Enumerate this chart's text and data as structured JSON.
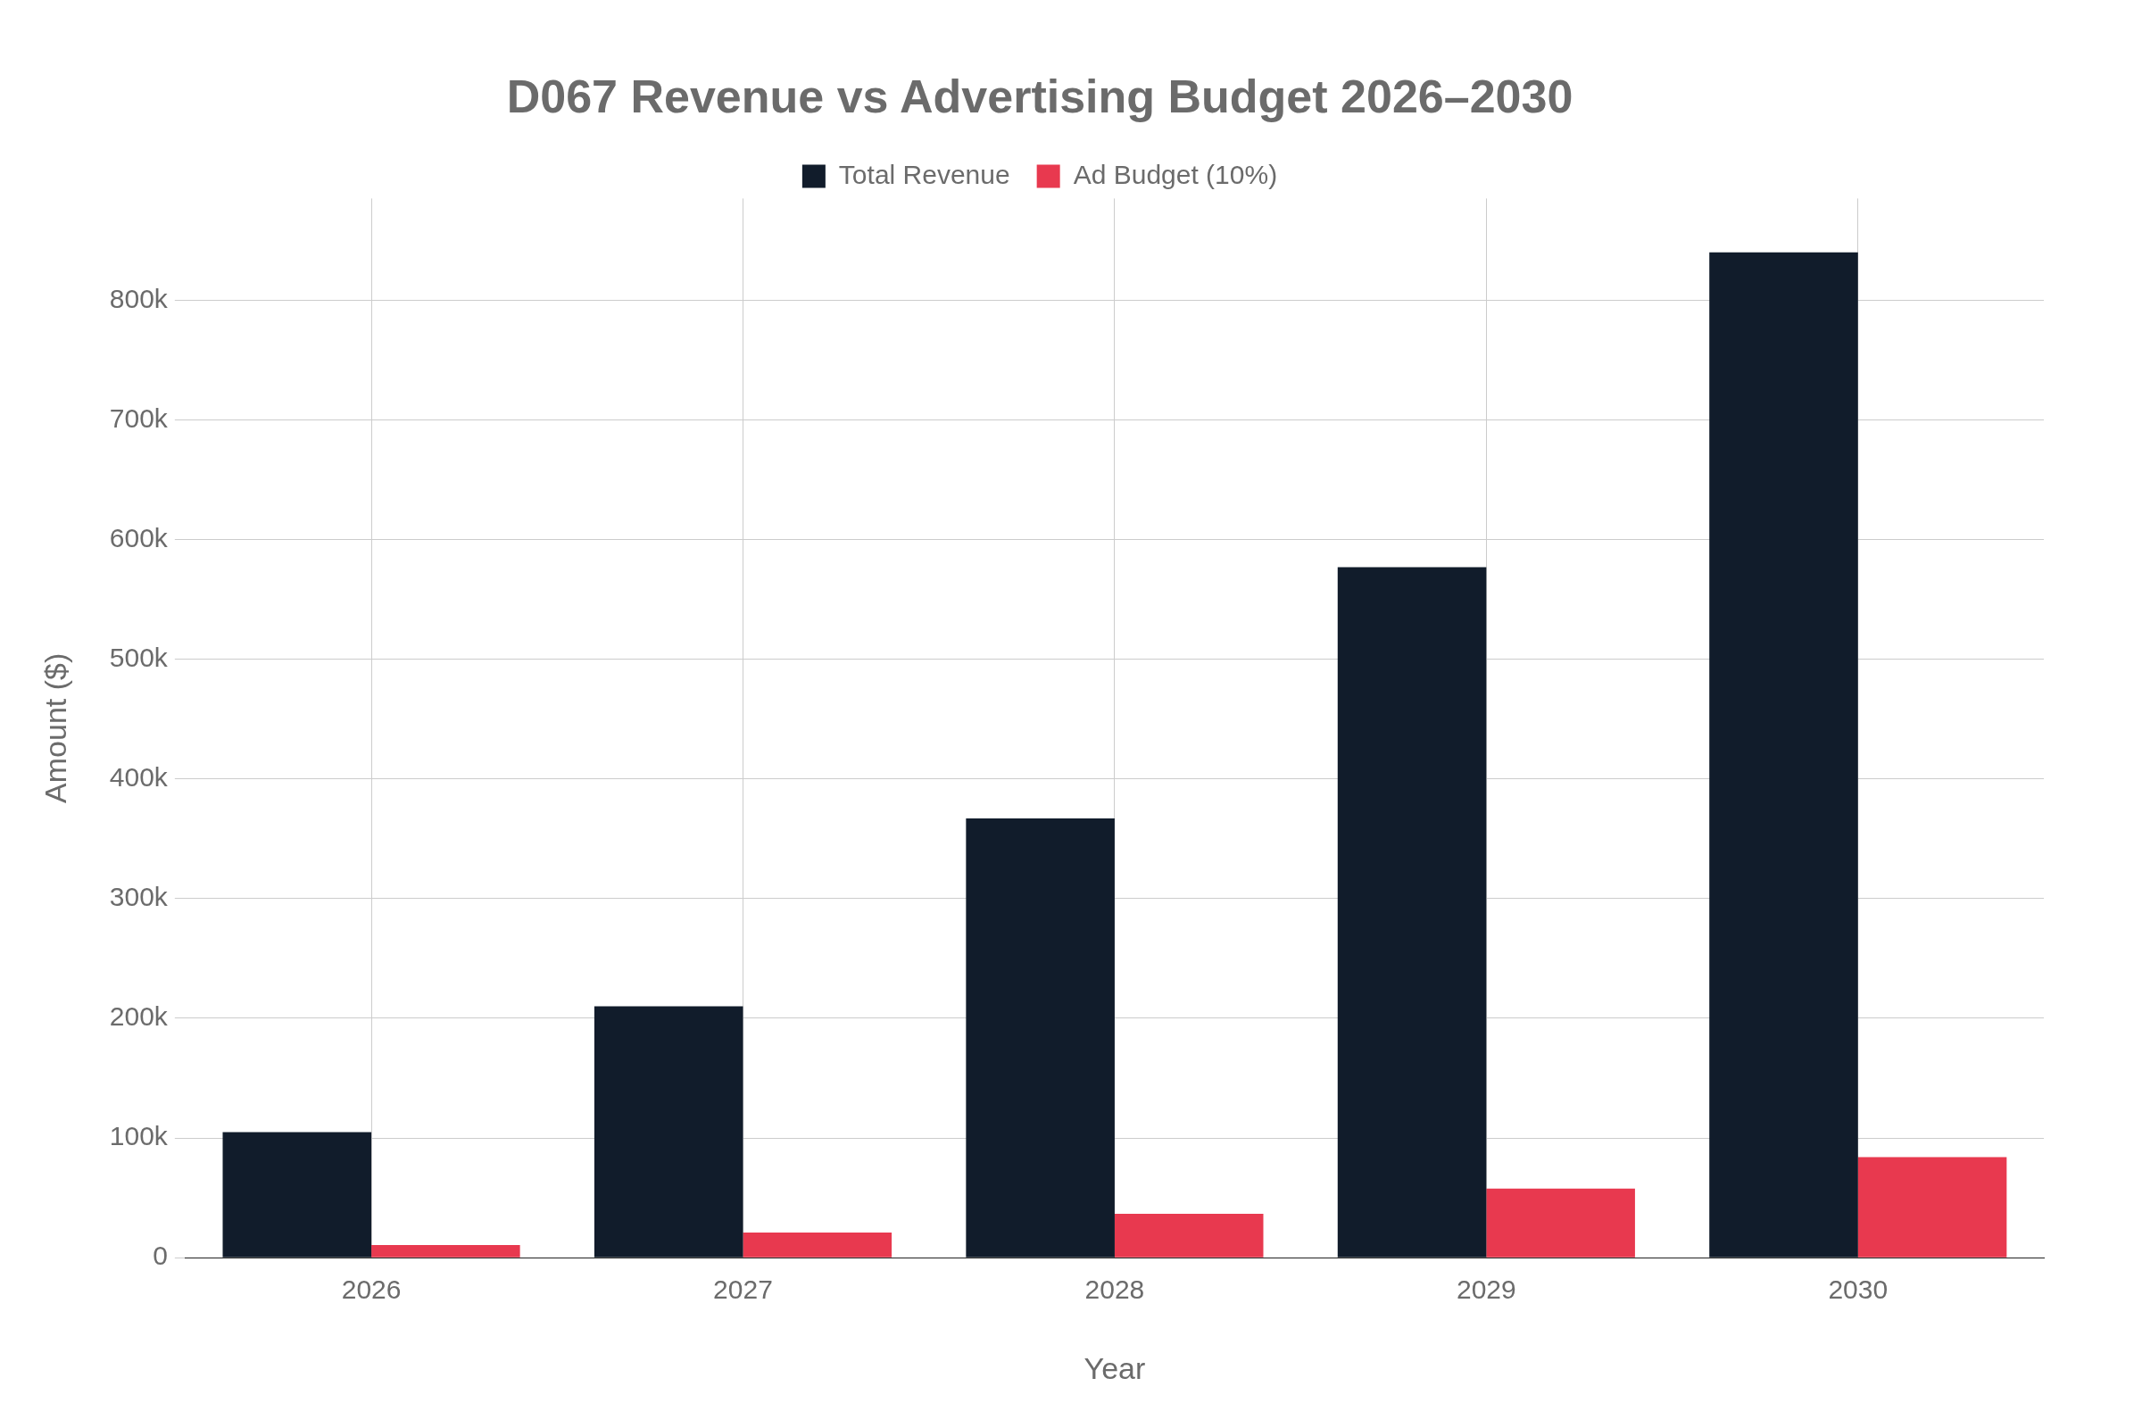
{
  "chart_data": {
    "type": "bar",
    "title": "D067 Revenue vs Advertising Budget 2026–2030",
    "xlabel": "Year",
    "ylabel": "Amount ($)",
    "categories": [
      "2026",
      "2027",
      "2028",
      "2029",
      "2030"
    ],
    "series": [
      {
        "name": "Total Revenue",
        "color": "#111c2b",
        "values": [
          105000,
          210000,
          367000,
          577000,
          840000
        ]
      },
      {
        "name": "Ad Budget (10%)",
        "color": "#e8394f",
        "values": [
          10500,
          21000,
          36700,
          57700,
          84000
        ]
      }
    ],
    "ylim": [
      0,
      885000
    ],
    "yticks": [
      0,
      {
        "value": 100000,
        "label": "100k"
      },
      {
        "value": 200000,
        "label": "200k"
      },
      {
        "value": 300000,
        "label": "300k"
      },
      {
        "value": 400000,
        "label": "400k"
      },
      {
        "value": 500000,
        "label": "500k"
      },
      {
        "value": 600000,
        "label": "600k"
      },
      {
        "value": 700000,
        "label": "700k"
      },
      {
        "value": 800000,
        "label": "800k"
      }
    ],
    "grid": true,
    "legend": "top"
  }
}
